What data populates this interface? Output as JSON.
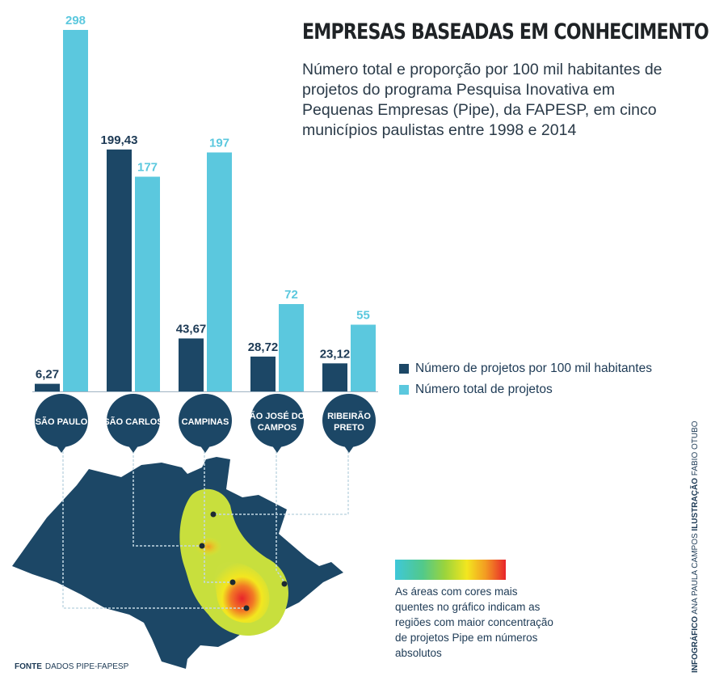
{
  "header": {
    "title": "EMPRESAS BASEADAS EM CONHECIMENTO",
    "subtitle": "Número total e proporção por 100 mil habitantes de projetos do programa Pesquisa Inovativa em Pequenas Empresas (Pipe), da FAPESP, em cinco municípios paulistas entre 1998 e 2014"
  },
  "colors": {
    "per100k": "#1c4766",
    "total": "#5bc8de",
    "text": "#1d3a55"
  },
  "chart_data": {
    "type": "bar",
    "categories": [
      "SÃO PAULO",
      "SÃO CARLOS",
      "CAMPINAS",
      "SÃO JOSÉ DOS CAMPOS",
      "RIBEIRÃO PRETO"
    ],
    "category_lines": [
      [
        "SÃO PAULO"
      ],
      [
        "SÃO CARLOS"
      ],
      [
        "CAMPINAS"
      ],
      [
        "SÃO JOSÉ DOS",
        "CAMPOS"
      ],
      [
        "RIBEIRÃO",
        "PRETO"
      ]
    ],
    "series": [
      {
        "name": "Número de projetos por 100 mil habitantes",
        "values": [
          6.27,
          199.43,
          43.67,
          28.72,
          23.12
        ],
        "labels": [
          "6,27",
          "199,43",
          "43,67",
          "28,72",
          "23,12"
        ]
      },
      {
        "name": "Número total de projetos",
        "values": [
          298,
          177,
          197,
          72,
          55
        ],
        "labels": [
          "298",
          "177",
          "197",
          "72",
          "55"
        ]
      }
    ],
    "ylim": [
      0,
      298
    ]
  },
  "legend": {
    "items": [
      {
        "label": "Número de projetos por 100 mil habitantes",
        "color": "#1c4766"
      },
      {
        "label": "Número total de projetos",
        "color": "#5bc8de"
      }
    ]
  },
  "heatmap_legend": {
    "text": "As áreas com cores mais quentes no gráfico indicam as regiões com maior concentração de projetos Pipe em números absolutos"
  },
  "source": {
    "label": "FONTE",
    "text": "DADOS PIPE-FAPESP"
  },
  "credits": {
    "infografico_label": "INFOGRÁFICO",
    "infografico_text": "ANA PAULA CAMPOS",
    "ilustracao_label": "ILUSTRAÇÃO",
    "ilustracao_text": "FABIO OTUBO"
  }
}
